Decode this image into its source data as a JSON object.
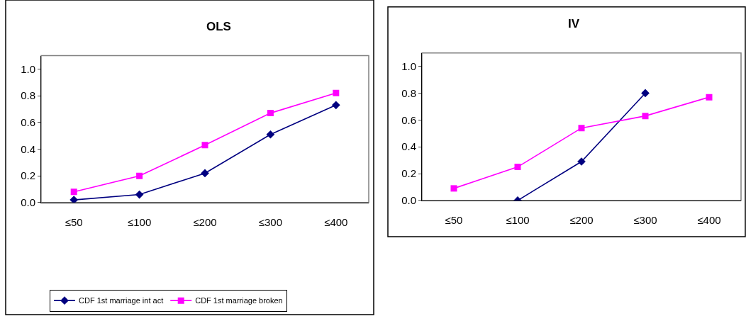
{
  "chart_data": [
    {
      "type": "line",
      "title": "OLS",
      "categories": [
        "≤50",
        "≤100",
        "≤200",
        "≤300",
        "≤400"
      ],
      "ylim": [
        0,
        1.1
      ],
      "yticks": [
        {
          "value": 0,
          "label": "0.0"
        },
        {
          "value": 0.2,
          "label": "0.2"
        },
        {
          "value": 0.4,
          "label": "0.4"
        },
        {
          "value": 0.6,
          "label": "0.6"
        },
        {
          "value": 0.8,
          "label": "0.8"
        },
        {
          "value": 1.0,
          "label": "1.0"
        }
      ],
      "grid": false,
      "legend": "bottom",
      "line_style": "solid",
      "series": [
        {
          "name": "CDF 1st marriage int act",
          "color": "#000080",
          "marker": "diamond",
          "values": [
            0.02,
            0.06,
            0.22,
            0.51,
            0.73
          ]
        },
        {
          "name": "CDF 1st marriage broken",
          "color": "#ff00ff",
          "marker": "square",
          "values": [
            0.08,
            0.2,
            0.43,
            0.67,
            0.82
          ]
        }
      ]
    },
    {
      "type": "line",
      "title": "IV",
      "categories": [
        "≤50",
        "≤100",
        "≤200",
        "≤300",
        "≤400"
      ],
      "ylim": [
        0,
        1.1
      ],
      "yticks": [
        {
          "value": 0,
          "label": "0.0"
        },
        {
          "value": 0.2,
          "label": "0.2"
        },
        {
          "value": 0.4,
          "label": "0.4"
        },
        {
          "value": 0.6,
          "label": "0.6"
        },
        {
          "value": 0.8,
          "label": "0.8"
        },
        {
          "value": 1.0,
          "label": "1.0"
        }
      ],
      "grid": false,
      "line_style": "solid",
      "series": [
        {
          "color": "#000080",
          "marker": "diamond",
          "values": [
            null,
            0.0,
            0.29,
            0.8,
            null
          ]
        },
        {
          "color": "#ff00ff",
          "marker": "square",
          "values": [
            0.09,
            0.25,
            0.54,
            0.63,
            0.77
          ]
        }
      ]
    }
  ]
}
